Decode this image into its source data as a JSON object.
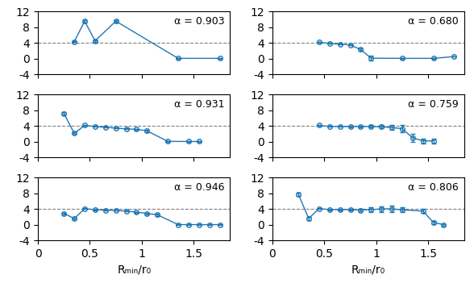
{
  "chart_data": [
    {
      "type": "line",
      "x": [
        0.35,
        0.45,
        0.55,
        0.75,
        1.35,
        1.75
      ],
      "values": [
        4.3,
        9.5,
        4.5,
        9.5,
        0.05,
        0.05
      ],
      "yerr": [
        0.12,
        0.3,
        0.18,
        0.3,
        0.04,
        0.04
      ],
      "marker": "o",
      "reference_line_y": 4.0,
      "annotations": [
        "α = 0.903"
      ],
      "xlim": [
        0.0,
        1.85
      ],
      "xticks": [
        0,
        0.5,
        1,
        1.5
      ],
      "ylim": [
        -4,
        12
      ],
      "yticks": [
        -4,
        0,
        4,
        8,
        12
      ],
      "tick_labels": "y"
    },
    {
      "type": "line",
      "x": [
        0.45,
        0.55,
        0.65,
        0.75,
        0.85,
        0.95,
        1.25,
        1.55,
        1.75
      ],
      "values": [
        4.15,
        3.85,
        3.65,
        3.45,
        2.3,
        0.1,
        0.05,
        0.05,
        0.5
      ],
      "yerr": [
        0.1,
        0.1,
        0.1,
        0.1,
        0.35,
        0.55,
        0.08,
        0.04,
        0.05
      ],
      "marker": "o",
      "reference_line_y": 4.0,
      "annotations": [
        "α = 0.680"
      ],
      "xlim": [
        0.0,
        1.85
      ],
      "xticks": [
        0,
        0.5,
        1,
        1.5
      ],
      "ylim": [
        -4,
        12
      ],
      "yticks": [
        -4,
        0,
        4,
        8,
        12
      ],
      "tick_labels": "y"
    },
    {
      "type": "line",
      "x": [
        0.25,
        0.35,
        0.45,
        0.55,
        0.65,
        0.75,
        0.85,
        0.95,
        1.05,
        1.25,
        1.45,
        1.55
      ],
      "values": [
        7.2,
        2.1,
        4.15,
        3.85,
        3.65,
        3.45,
        3.25,
        3.15,
        2.75,
        0.08,
        0.05,
        0.05
      ],
      "yerr": [
        0.25,
        0.2,
        0.1,
        0.1,
        0.1,
        0.1,
        0.1,
        0.1,
        0.35,
        0.08,
        0.04,
        0.04
      ],
      "marker": "o",
      "reference_line_y": 4.0,
      "annotations": [
        "α = 0.931"
      ],
      "xlim": [
        0.0,
        1.85
      ],
      "xticks": [
        0,
        0.5,
        1,
        1.5
      ],
      "ylim": [
        -4,
        12
      ],
      "yticks": [
        -4,
        0,
        4,
        8,
        12
      ],
      "tick_labels": "y"
    },
    {
      "type": "line",
      "x": [
        0.45,
        0.55,
        0.65,
        0.75,
        0.85,
        0.95,
        1.05,
        1.15,
        1.25,
        1.35,
        1.45,
        1.55
      ],
      "values": [
        4.15,
        3.85,
        3.85,
        3.85,
        3.85,
        3.85,
        3.75,
        3.6,
        3.3,
        1.0,
        0.2,
        0.2
      ],
      "yerr": [
        0.1,
        0.1,
        0.1,
        0.12,
        0.18,
        0.3,
        0.42,
        0.6,
        0.85,
        1.05,
        0.65,
        0.65
      ],
      "marker": "o",
      "reference_line_y": 4.0,
      "annotations": [
        "α = 0.759"
      ],
      "xlim": [
        0.0,
        1.85
      ],
      "xticks": [
        0,
        0.5,
        1,
        1.5
      ],
      "ylim": [
        -4,
        12
      ],
      "yticks": [
        -4,
        0,
        4,
        8,
        12
      ],
      "tick_labels": "y"
    },
    {
      "type": "line",
      "x": [
        0.25,
        0.35,
        0.45,
        0.55,
        0.65,
        0.75,
        0.85,
        0.95,
        1.05,
        1.15,
        1.35,
        1.45,
        1.55,
        1.65,
        1.75
      ],
      "values": [
        2.9,
        1.6,
        4.1,
        3.85,
        3.75,
        3.65,
        3.5,
        3.2,
        2.9,
        2.55,
        0.05,
        0.05,
        0.05,
        0.05,
        0.05
      ],
      "yerr": [
        0.2,
        0.2,
        0.1,
        0.1,
        0.1,
        0.1,
        0.1,
        0.1,
        0.2,
        0.32,
        0.1,
        0.1,
        0.1,
        0.18,
        0.1
      ],
      "marker": "o",
      "reference_line_y": 4.0,
      "annotations": [
        "α = 0.946"
      ],
      "xlabel": "Rₘᵢₙ/r₀",
      "xlim": [
        0.0,
        1.85
      ],
      "xticks": [
        0,
        0.5,
        1,
        1.5
      ],
      "ylim": [
        -4,
        12
      ],
      "yticks": [
        -4,
        0,
        4,
        8,
        12
      ]
    },
    {
      "type": "line",
      "x": [
        0.25,
        0.35,
        0.45,
        0.55,
        0.65,
        0.75,
        0.85,
        0.95,
        1.05,
        1.15,
        1.25,
        1.45,
        1.55,
        1.65
      ],
      "values": [
        7.8,
        1.6,
        4.15,
        3.85,
        3.85,
        3.85,
        3.75,
        3.85,
        4.05,
        4.05,
        3.8,
        3.5,
        0.6,
        0.05
      ],
      "yerr": [
        0.4,
        0.35,
        0.12,
        0.1,
        0.1,
        0.15,
        0.35,
        0.6,
        0.72,
        0.82,
        0.62,
        0.52,
        0.38,
        0.2
      ],
      "marker": "o",
      "reference_line_y": 4.0,
      "annotations": [
        "α = 0.806"
      ],
      "xlabel": "Rₘᵢₙ/r₀",
      "xlim": [
        0.0,
        1.85
      ],
      "xticks": [
        0,
        0.5,
        1,
        1.5
      ],
      "ylim": [
        -4,
        12
      ],
      "yticks": [
        -4,
        0,
        4,
        8,
        12
      ]
    }
  ]
}
